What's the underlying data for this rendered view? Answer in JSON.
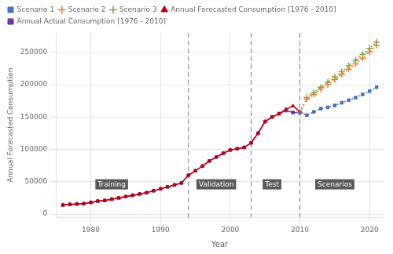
{
  "chart_data": {
    "type": "line",
    "x_label": "Year",
    "y_label": "Annual Forecasted Consumption",
    "xlim": [
      1975,
      2022
    ],
    "ylim": [
      -5000,
      280000
    ],
    "xticks": [
      1980,
      1990,
      2000,
      2010,
      2020
    ],
    "yticks": [
      0,
      50000,
      100000,
      150000,
      200000,
      250000
    ],
    "grid": true,
    "legend": "upper left",
    "series": [
      {
        "name": "Scenario 1",
        "color": "#4472c4",
        "marker": "square",
        "line_style": "dotted",
        "x": [
          2010,
          2011,
          2012,
          2013,
          2014,
          2015,
          2016,
          2017,
          2018,
          2019,
          2020,
          2021
        ],
        "values": [
          157000,
          153000,
          158000,
          163000,
          165000,
          168000,
          172000,
          176000,
          180000,
          185000,
          190000,
          196000
        ]
      },
      {
        "name": "Scenario 2",
        "color": "#ed7d31",
        "marker": "plus",
        "line_style": "dotted",
        "x": [
          2010,
          2011,
          2012,
          2013,
          2014,
          2015,
          2016,
          2017,
          2018,
          2019,
          2020,
          2021
        ],
        "values": [
          157000,
          178000,
          185000,
          193000,
          200000,
          208000,
          216000,
          224000,
          232000,
          241000,
          251000,
          261000
        ]
      },
      {
        "name": "Scenario 3",
        "color": "#70ad47",
        "marker": "plus",
        "line_style": "dotted",
        "x": [
          2010,
          2011,
          2012,
          2013,
          2014,
          2015,
          2016,
          2017,
          2018,
          2019,
          2020,
          2021
        ],
        "values": [
          157000,
          180000,
          188000,
          196000,
          204000,
          212000,
          220000,
          229000,
          238000,
          247000,
          256000,
          266000
        ]
      },
      {
        "name": "Annual Forecasted Consumption [1976 - 2010]",
        "color": "#c00000",
        "marker": "triangle",
        "line_style": "solid",
        "x": [
          1976,
          1977,
          1978,
          1979,
          1980,
          1981,
          1982,
          1983,
          1984,
          1985,
          1986,
          1987,
          1988,
          1989,
          1990,
          1991,
          1992,
          1993,
          1994,
          1995,
          1996,
          1997,
          1998,
          1999,
          2000,
          2001,
          2002,
          2003,
          2004,
          2005,
          2006,
          2007,
          2008,
          2009,
          2010
        ],
        "values": [
          14000,
          15000,
          15500,
          16000,
          18000,
          20000,
          21000,
          23000,
          25000,
          27000,
          29000,
          31000,
          33000,
          36000,
          39000,
          42000,
          45000,
          48000,
          60000,
          67000,
          74000,
          82000,
          88000,
          94000,
          99000,
          101000,
          103000,
          110000,
          125000,
          143000,
          150000,
          155000,
          162000,
          167000,
          158000
        ]
      },
      {
        "name": "Annual Actual Consumption [1976 - 2010]",
        "color": "#7030a0",
        "marker": "square",
        "line_style": "solid",
        "x": [
          1976,
          1977,
          1978,
          1979,
          1980,
          1981,
          1982,
          1983,
          1984,
          1985,
          1986,
          1987,
          1988,
          1989,
          1990,
          1991,
          1992,
          1993,
          1994,
          1995,
          1996,
          1997,
          1998,
          1999,
          2000,
          2001,
          2002,
          2003,
          2004,
          2005,
          2006,
          2007,
          2008,
          2009,
          2010
        ],
        "values": [
          14000,
          15000,
          15500,
          16000,
          18000,
          20000,
          21000,
          23000,
          25000,
          27000,
          29000,
          31000,
          33000,
          36000,
          39000,
          42000,
          45000,
          48000,
          60000,
          67000,
          74000,
          82000,
          88000,
          94000,
          99000,
          101000,
          103000,
          110000,
          125000,
          143000,
          150000,
          155000,
          160000,
          157000,
          157000
        ]
      }
    ],
    "vlines": [
      {
        "x": 1994,
        "color": "#7f7f7f",
        "line_style": "dashed"
      },
      {
        "x": 2003,
        "color": "#7f7f7f",
        "line_style": "dashed"
      },
      {
        "x": 2010,
        "color": "#7f7f7f",
        "line_style": "dashed"
      }
    ],
    "annotations": [
      {
        "text": "Training",
        "x": 1983,
        "y": 46000,
        "color": "#595959"
      },
      {
        "text": "Validation",
        "x": 1998,
        "y": 46000,
        "color": "#595959"
      },
      {
        "text": "Test",
        "x": 2006,
        "y": 46000,
        "color": "#595959"
      },
      {
        "text": "Scenarios",
        "x": 2015,
        "y": 46000,
        "color": "#595959"
      }
    ]
  }
}
